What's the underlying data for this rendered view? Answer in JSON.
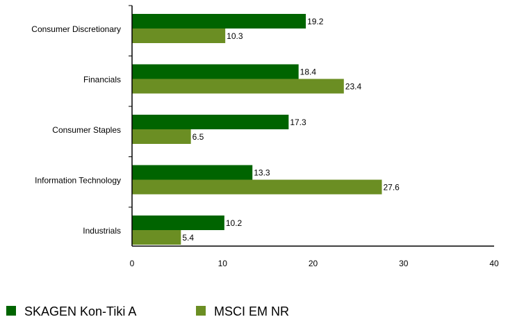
{
  "chart_data": {
    "type": "bar",
    "orientation": "horizontal",
    "title": "",
    "xlabel": "",
    "ylabel": "",
    "categories": [
      "Consumer Discretionary",
      "Financials",
      "Consumer Staples",
      "Information Technology",
      "Industrials"
    ],
    "series": [
      {
        "name": "SKAGEN Kon-Tiki A",
        "color": "#006400",
        "values": [
          19.2,
          18.4,
          17.3,
          13.3,
          10.2
        ]
      },
      {
        "name": "MSCI EM NR",
        "color": "#6b8e23",
        "values": [
          10.3,
          23.4,
          6.5,
          27.6,
          5.4
        ]
      }
    ],
    "xlim": [
      0,
      40
    ],
    "xticks": [
      0,
      10,
      20,
      30,
      40
    ],
    "grid": false,
    "data_labels": true,
    "legend_position": "bottom-left"
  }
}
